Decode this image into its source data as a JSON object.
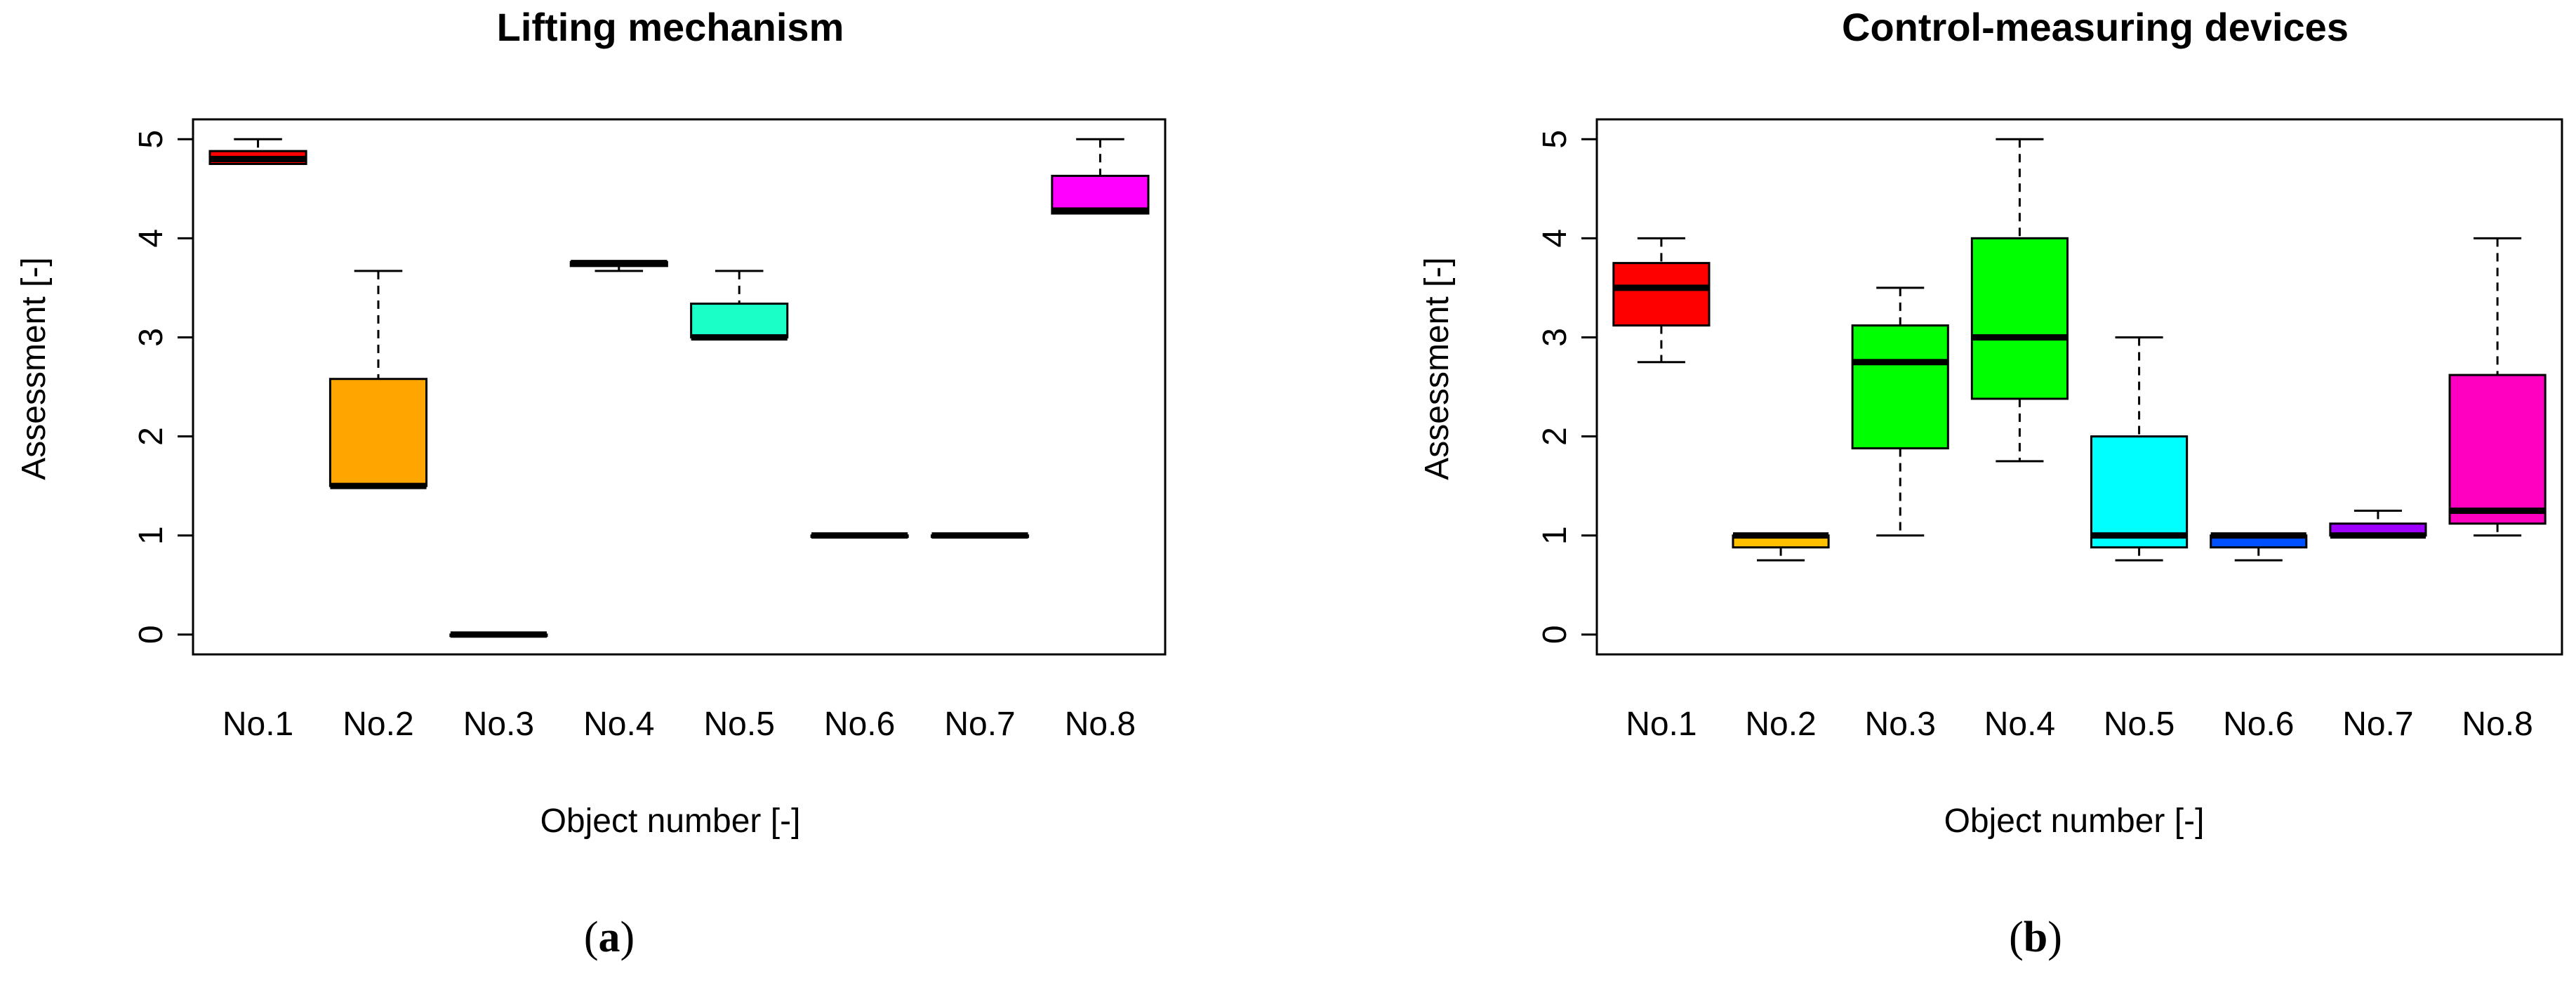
{
  "chart_data": [
    {
      "type": "box",
      "title": "Lifting mechanism",
      "xlabel": "Object number [-]",
      "ylabel": "Assessment [-]",
      "ylim": [
        0,
        5
      ],
      "yticks": [
        "0",
        "1",
        "2",
        "3",
        "4",
        "5"
      ],
      "panel_prefix": "(",
      "panel_letter": "a",
      "panel_suffix": ")",
      "boxes": [
        {
          "label": "No.1",
          "color": "#ff0000",
          "min": 4.75,
          "q1": 4.75,
          "median": 4.8,
          "q3": 4.88,
          "max": 5.0
        },
        {
          "label": "No.2",
          "color": "#ffa500",
          "min": 1.5,
          "q1": 1.5,
          "median": 1.5,
          "q3": 2.58,
          "max": 3.67
        },
        {
          "label": "No.3",
          "color": "#ff00ff",
          "min": 0,
          "q1": 0,
          "median": 0,
          "q3": 0,
          "max": 0
        },
        {
          "label": "No.4",
          "color": "#00ff00",
          "min": 3.67,
          "q1": 3.72,
          "median": 3.75,
          "q3": 3.76,
          "max": 3.76
        },
        {
          "label": "No.5",
          "color": "#1affc8",
          "min": 3.0,
          "q1": 3.0,
          "median": 3.0,
          "q3": 3.34,
          "max": 3.67
        },
        {
          "label": "No.6",
          "color": "#0000ff",
          "min": 1.0,
          "q1": 1.0,
          "median": 1.0,
          "q3": 1.0,
          "max": 1.0
        },
        {
          "label": "No.7",
          "color": "#8000ff",
          "min": 1.0,
          "q1": 1.0,
          "median": 1.0,
          "q3": 1.0,
          "max": 1.0
        },
        {
          "label": "No.8",
          "color": "#ff00ff",
          "min": 4.25,
          "q1": 4.25,
          "median": 4.28,
          "q3": 4.63,
          "max": 5.0
        }
      ]
    },
    {
      "type": "box",
      "title": "Control-measuring devices",
      "xlabel": "Object number [-]",
      "ylabel": "Assessment [-]",
      "ylim": [
        0,
        5
      ],
      "yticks": [
        "0",
        "1",
        "2",
        "3",
        "4",
        "5"
      ],
      "panel_prefix": "(",
      "panel_letter": "b",
      "panel_suffix": ")",
      "boxes": [
        {
          "label": "No.1",
          "color": "#ff0000",
          "min": 2.75,
          "q1": 3.12,
          "median": 3.5,
          "q3": 3.75,
          "max": 4.0
        },
        {
          "label": "No.2",
          "color": "#ffc000",
          "min": 0.75,
          "q1": 0.88,
          "median": 1.0,
          "q3": 1.0,
          "max": 1.0
        },
        {
          "label": "No.3",
          "color": "#00ff00",
          "min": 1.0,
          "q1": 1.88,
          "median": 2.75,
          "q3": 3.12,
          "max": 3.5
        },
        {
          "label": "No.4",
          "color": "#00ff00",
          "min": 1.75,
          "q1": 2.38,
          "median": 3.0,
          "q3": 4.0,
          "max": 5.0
        },
        {
          "label": "No.5",
          "color": "#00ffff",
          "min": 0.75,
          "q1": 0.88,
          "median": 1.0,
          "q3": 2.0,
          "max": 3.0
        },
        {
          "label": "No.6",
          "color": "#0050ff",
          "min": 0.75,
          "q1": 0.88,
          "median": 1.0,
          "q3": 1.0,
          "max": 1.0
        },
        {
          "label": "No.7",
          "color": "#a000ff",
          "min": 1.0,
          "q1": 1.0,
          "median": 1.0,
          "q3": 1.12,
          "max": 1.25
        },
        {
          "label": "No.8",
          "color": "#ff00c0",
          "min": 1.0,
          "q1": 1.12,
          "median": 1.25,
          "q3": 2.62,
          "max": 4.0
        }
      ]
    }
  ]
}
